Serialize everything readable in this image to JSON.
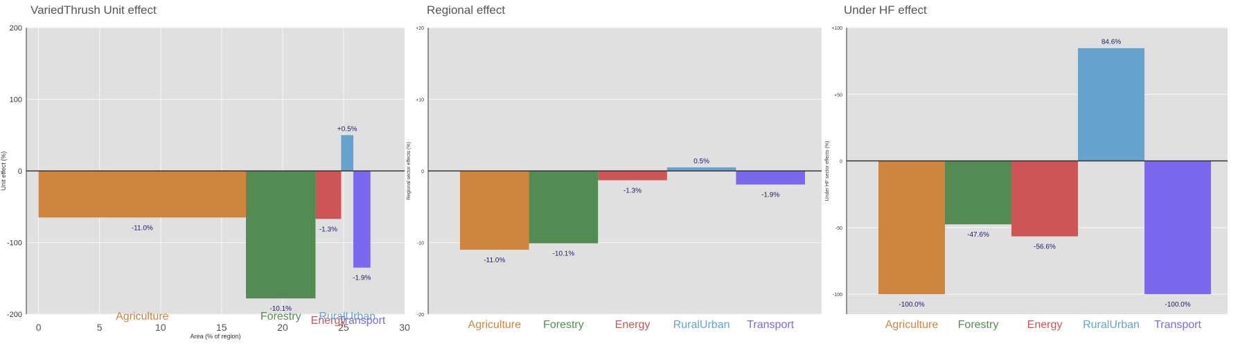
{
  "sector_colors": {
    "Agriculture": "#cd853f",
    "Forestry": "#548b54",
    "Energy": "#cd5555",
    "RuralUrban": "#66a3cc",
    "Transport": "#7b68ee"
  },
  "chart_data": [
    {
      "type": "bar",
      "title": "VariedThrush Unit effect",
      "xlabel": "Area (% of region)",
      "ylabel": "Unit effect (%)",
      "xlim": [
        -1,
        30
      ],
      "ylim": [
        -200,
        200
      ],
      "xticks": [
        "0",
        "5",
        "10",
        "15",
        "20",
        "25",
        "30"
      ],
      "yticks": [
        "200",
        "100",
        "0",
        "-100",
        "-200"
      ],
      "grid": true,
      "bars": [
        {
          "name": "Agriculture",
          "x_start": 0,
          "x_end": 17,
          "value": -65,
          "label": "-11.0%"
        },
        {
          "name": "Forestry",
          "x_start": 17,
          "x_end": 22.7,
          "value": -178,
          "label": "-10.1%"
        },
        {
          "name": "Energy",
          "x_start": 22.7,
          "x_end": 24.8,
          "value": -67,
          "label": "-1.3%"
        },
        {
          "name": "RuralUrban",
          "x_start": 24.8,
          "x_end": 25.8,
          "value": 50,
          "label": "+0.5%"
        },
        {
          "name": "Transport",
          "x_start": 25.8,
          "x_end": 27.2,
          "value": -135,
          "label": "-1.9%"
        }
      ]
    },
    {
      "type": "bar",
      "title": "Regional effect",
      "xlabel": "",
      "ylabel": "Regional sector effects (%)",
      "ylim": [
        -20,
        20
      ],
      "yticks": [
        "+20",
        "+10",
        "0",
        "-10",
        "-20"
      ],
      "grid": true,
      "categories": [
        "Agriculture",
        "Forestry",
        "Energy",
        "RuralUrban",
        "Transport"
      ],
      "values": [
        -11.0,
        -10.1,
        -1.3,
        0.5,
        -1.9
      ],
      "labels": [
        "-11.0%",
        "-10.1%",
        "-1.3%",
        "0.5%",
        "-1.9%"
      ]
    },
    {
      "type": "bar",
      "title": "Under HF effect",
      "xlabel": "",
      "ylabel": "Under HF sector effects (%)",
      "ylim": [
        -115,
        100
      ],
      "yticks": [
        "+100",
        "+50",
        "0",
        "-50",
        "-100"
      ],
      "grid": true,
      "categories": [
        "Agriculture",
        "Forestry",
        "Energy",
        "RuralUrban",
        "Transport"
      ],
      "values": [
        -100.0,
        -47.6,
        -56.6,
        84.6,
        -100.0
      ],
      "labels": [
        "-100.0%",
        "-47.6%",
        "-56.6%",
        "84.6%",
        "-100.0%"
      ]
    }
  ]
}
